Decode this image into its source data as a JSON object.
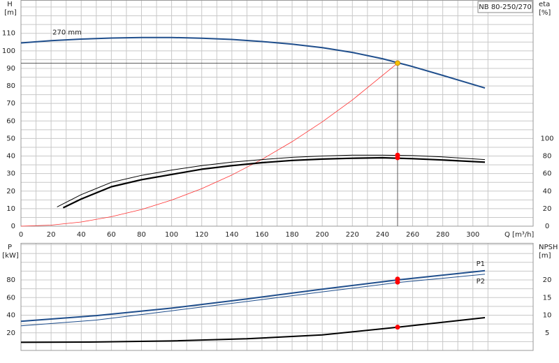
{
  "chart_data": [
    {
      "type": "line",
      "title": "NB 80-250/270",
      "ylabel": "H",
      "yunit": "[m]",
      "y2label": "eta",
      "y2unit": "[%]",
      "xlabel": "Q [m³/h]",
      "xlim": [
        0,
        340
      ],
      "xticks": [
        0,
        20,
        40,
        60,
        80,
        100,
        120,
        140,
        160,
        180,
        200,
        220,
        240,
        260,
        280,
        300
      ],
      "ylim": [
        0,
        129
      ],
      "yticks": [
        0,
        10,
        20,
        30,
        40,
        50,
        60,
        70,
        80,
        90,
        100,
        110
      ],
      "y2lim": [
        0,
        258
      ],
      "y2ticks": [
        0,
        20,
        40,
        60,
        80,
        100
      ],
      "grid": true,
      "series": [
        {
          "name": "270 mm",
          "color": "#1f4e8c",
          "width": 2,
          "x": [
            0,
            20,
            40,
            60,
            80,
            100,
            120,
            140,
            160,
            180,
            200,
            220,
            240,
            260,
            280,
            308
          ],
          "values": [
            104.5,
            105.8,
            106.7,
            107.3,
            107.6,
            107.6,
            107.2,
            106.5,
            105.3,
            103.8,
            101.8,
            99.1,
            95.5,
            91,
            86,
            78.8
          ]
        },
        {
          "color": "#ff3030",
          "width": 0.8,
          "x": [
            0,
            20,
            40,
            60,
            80,
            100,
            120,
            140,
            160,
            180,
            200,
            220,
            250
          ],
          "values": [
            0,
            0.6,
            2.4,
            5.4,
            9.5,
            14.9,
            21.4,
            29.2,
            38.1,
            48.2,
            59.5,
            72,
            93
          ]
        },
        {
          "color": "#000000",
          "width": 1,
          "axis": "y2",
          "x": [
            24,
            40,
            60,
            80,
            100,
            120,
            140,
            160,
            180,
            200,
            220,
            240,
            260,
            280,
            308
          ],
          "values": [
            22,
            36,
            50,
            58,
            64,
            69,
            73,
            76,
            78.5,
            80,
            81,
            81,
            80.5,
            79,
            76
          ]
        },
        {
          "color": "#000000",
          "width": 2.2,
          "axis": "y2",
          "x": [
            28,
            40,
            60,
            80,
            100,
            120,
            140,
            160,
            180,
            200,
            220,
            240,
            260,
            280,
            308
          ],
          "values": [
            21,
            31,
            45,
            53,
            59,
            65,
            69,
            72.5,
            75,
            76.5,
            77.5,
            78,
            77,
            75.5,
            73
          ]
        }
      ],
      "markers": [
        {
          "x": 250,
          "y": 93,
          "color": "#f5c000",
          "crosshair": true
        },
        {
          "x": 250,
          "y": 81,
          "color": "#ff0000",
          "axis": "y2"
        },
        {
          "x": 250,
          "y": 78,
          "color": "#ff0000",
          "axis": "y2"
        }
      ]
    },
    {
      "type": "line",
      "ylabel": "P",
      "yunit": "[kW]",
      "y2label": "NPSH",
      "y2unit": "[m]",
      "xlim": [
        0,
        340
      ],
      "ylim": [
        0,
        122
      ],
      "yticks": [
        20,
        40,
        60,
        80
      ],
      "y2lim": [
        0,
        30.5
      ],
      "y2ticks": [
        5,
        10,
        15,
        20
      ],
      "grid": true,
      "series": [
        {
          "name": "P1",
          "color": "#1f4e8c",
          "width": 2,
          "x": [
            0,
            50,
            100,
            150,
            200,
            250,
            308
          ],
          "values": [
            33,
            39.5,
            48,
            58.5,
            69.5,
            80,
            90.5
          ]
        },
        {
          "name": "P2",
          "color": "#1f4e8c",
          "width": 1,
          "x": [
            0,
            50,
            100,
            150,
            200,
            250,
            308
          ],
          "values": [
            28,
            34.5,
            45,
            55.5,
            66.5,
            77,
            86.5
          ]
        },
        {
          "color": "#000000",
          "width": 2,
          "axis": "y2",
          "x": [
            0,
            50,
            100,
            150,
            200,
            250,
            308
          ],
          "values": [
            2.3,
            2.4,
            2.7,
            3.3,
            4.4,
            6.6,
            9.3
          ]
        }
      ],
      "markers": [
        {
          "x": 250,
          "y": 81,
          "color": "#ff0000"
        },
        {
          "x": 250,
          "y": 77.5,
          "color": "#ff0000"
        },
        {
          "x": 250,
          "y": 6.6,
          "color": "#ff0000",
          "axis": "y2"
        }
      ]
    }
  ]
}
